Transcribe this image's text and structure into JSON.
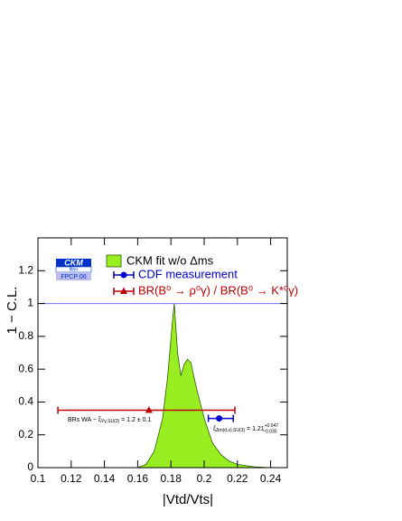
{
  "chart_data": {
    "type": "area",
    "xlabel": "|Vtd/Vts|",
    "ylabel": "1 − C.L.",
    "xlim": [
      0.1,
      0.25
    ],
    "ylim": [
      0,
      1.4
    ],
    "xticks": [
      0.1,
      0.12,
      0.14,
      0.16,
      0.18,
      0.2,
      0.22,
      0.24
    ],
    "yticks": [
      0,
      0.2,
      0.4,
      0.6,
      0.8,
      1,
      1.2
    ],
    "hline": {
      "value": 1,
      "color": "#7070ff"
    },
    "logo": {
      "title": "CKM",
      "subtitle": "fitter",
      "tag": "FPCP 06"
    },
    "series": [
      {
        "name": "CKM fit w/o Δms",
        "type": "area",
        "color": "#99ee22",
        "edge": "#2b5e00",
        "x": [
          0.16,
          0.165,
          0.17,
          0.175,
          0.178,
          0.181,
          0.182,
          0.184,
          0.186,
          0.188,
          0.19,
          0.192,
          0.195,
          0.2,
          0.205,
          0.21,
          0.215,
          0.22,
          0.23,
          0.24
        ],
        "values": [
          0,
          0.02,
          0.1,
          0.3,
          0.55,
          0.9,
          1.0,
          0.7,
          0.56,
          0.63,
          0.66,
          0.64,
          0.5,
          0.3,
          0.15,
          0.08,
          0.04,
          0.02,
          0.005,
          0
        ]
      },
      {
        "name": "CDF measurement",
        "type": "errorbar",
        "marker": "circle",
        "color": "#0000cc",
        "x": 0.209,
        "y": 0.3,
        "xerr_minus": 0.0065,
        "xerr_plus": 0.0085,
        "annotation": {
          "text": "ξ",
          "sub": "Δm(d,s),SU(3)",
          "rest": " = 1.21",
          "plus": "+0.047",
          "minus": "−0.035"
        }
      },
      {
        "name": "BR(B⁰ → ρ⁰γ) / BR(B⁰ → K*⁰γ)",
        "type": "errorbar",
        "marker": "triangle",
        "color": "#bb0000",
        "x": 0.1668,
        "y": 0.35,
        "xerr_minus": 0.0548,
        "xerr_plus": 0.0517,
        "annotation": {
          "text": "BRs WA − ξ",
          "sub": "Vγ,SU(3)",
          "rest": " = 1.2 ± 0.1"
        }
      }
    ]
  }
}
